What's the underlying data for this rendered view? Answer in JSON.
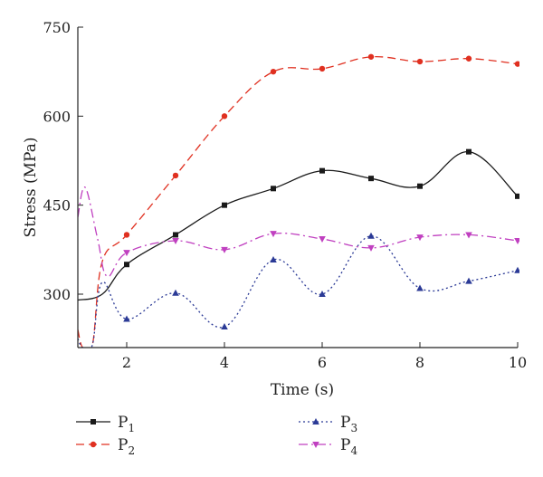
{
  "chart_data": {
    "type": "line",
    "xlabel": "Time (s)",
    "ylabel": "Stress (MPa)",
    "xlim": [
      1,
      10
    ],
    "ylim": [
      210,
      750
    ],
    "x_ticks": [
      2,
      4,
      6,
      8,
      10
    ],
    "x_tick_labels": [
      "2",
      "4",
      "6",
      "8",
      "10"
    ],
    "y_ticks": [
      300,
      450,
      600,
      750
    ],
    "y_tick_labels": [
      "300",
      "450",
      "600",
      "750"
    ],
    "grid": false,
    "legend_position": "bottom",
    "series": [
      {
        "name": "P",
        "subscript": "1",
        "color": "#1a1a1a",
        "dash": "solid",
        "marker": "square",
        "x": [
          1,
          1.5,
          2,
          3,
          4,
          5,
          6,
          7,
          8,
          9,
          10
        ],
        "y": [
          290,
          300,
          350,
          400,
          450,
          478,
          508,
          495,
          482,
          540,
          465
        ],
        "marker_x": [
          2,
          3,
          4,
          5,
          6,
          7,
          8,
          9,
          10
        ],
        "marker_y": [
          350,
          400,
          450,
          478,
          508,
          495,
          482,
          540,
          465
        ]
      },
      {
        "name": "P",
        "subscript": "2",
        "color": "#e03020",
        "dash": "long-dash",
        "marker": "circle",
        "x": [
          1,
          1.1,
          1.3,
          1.5,
          2,
          3,
          4,
          5,
          6,
          7,
          8,
          9,
          10
        ],
        "y": [
          240,
          210,
          215,
          355,
          400,
          500,
          600,
          675,
          680,
          700,
          692,
          697,
          688
        ],
        "marker_x": [
          2,
          3,
          4,
          5,
          6,
          7,
          8,
          9,
          10
        ],
        "marker_y": [
          400,
          500,
          600,
          675,
          680,
          700,
          692,
          697,
          688
        ]
      },
      {
        "name": "P",
        "subscript": "3",
        "color": "#2b3a96",
        "dash": "dotted",
        "marker": "triangle-up",
        "x": [
          1,
          1.1,
          1.3,
          1.5,
          2,
          3,
          4,
          5,
          6,
          7,
          8,
          9,
          10
        ],
        "y": [
          225,
          210,
          215,
          320,
          258,
          302,
          245,
          358,
          300,
          398,
          310,
          322,
          340
        ],
        "marker_x": [
          2,
          3,
          4,
          5,
          6,
          7,
          8,
          9,
          10
        ],
        "marker_y": [
          258,
          302,
          245,
          358,
          300,
          398,
          310,
          322,
          340
        ]
      },
      {
        "name": "P",
        "subscript": "4",
        "color": "#c040c0",
        "dash": "dash-dot",
        "marker": "triangle-down",
        "x": [
          1,
          1.15,
          1.4,
          1.6,
          2,
          3,
          4,
          5,
          6,
          7,
          8,
          9,
          10
        ],
        "y": [
          430,
          480,
          395,
          330,
          370,
          390,
          375,
          402,
          393,
          378,
          396,
          400,
          390
        ],
        "marker_x": [
          2,
          3,
          4,
          5,
          6,
          7,
          8,
          9,
          10
        ],
        "marker_y": [
          370,
          390,
          375,
          402,
          393,
          378,
          396,
          400,
          390
        ]
      }
    ]
  }
}
